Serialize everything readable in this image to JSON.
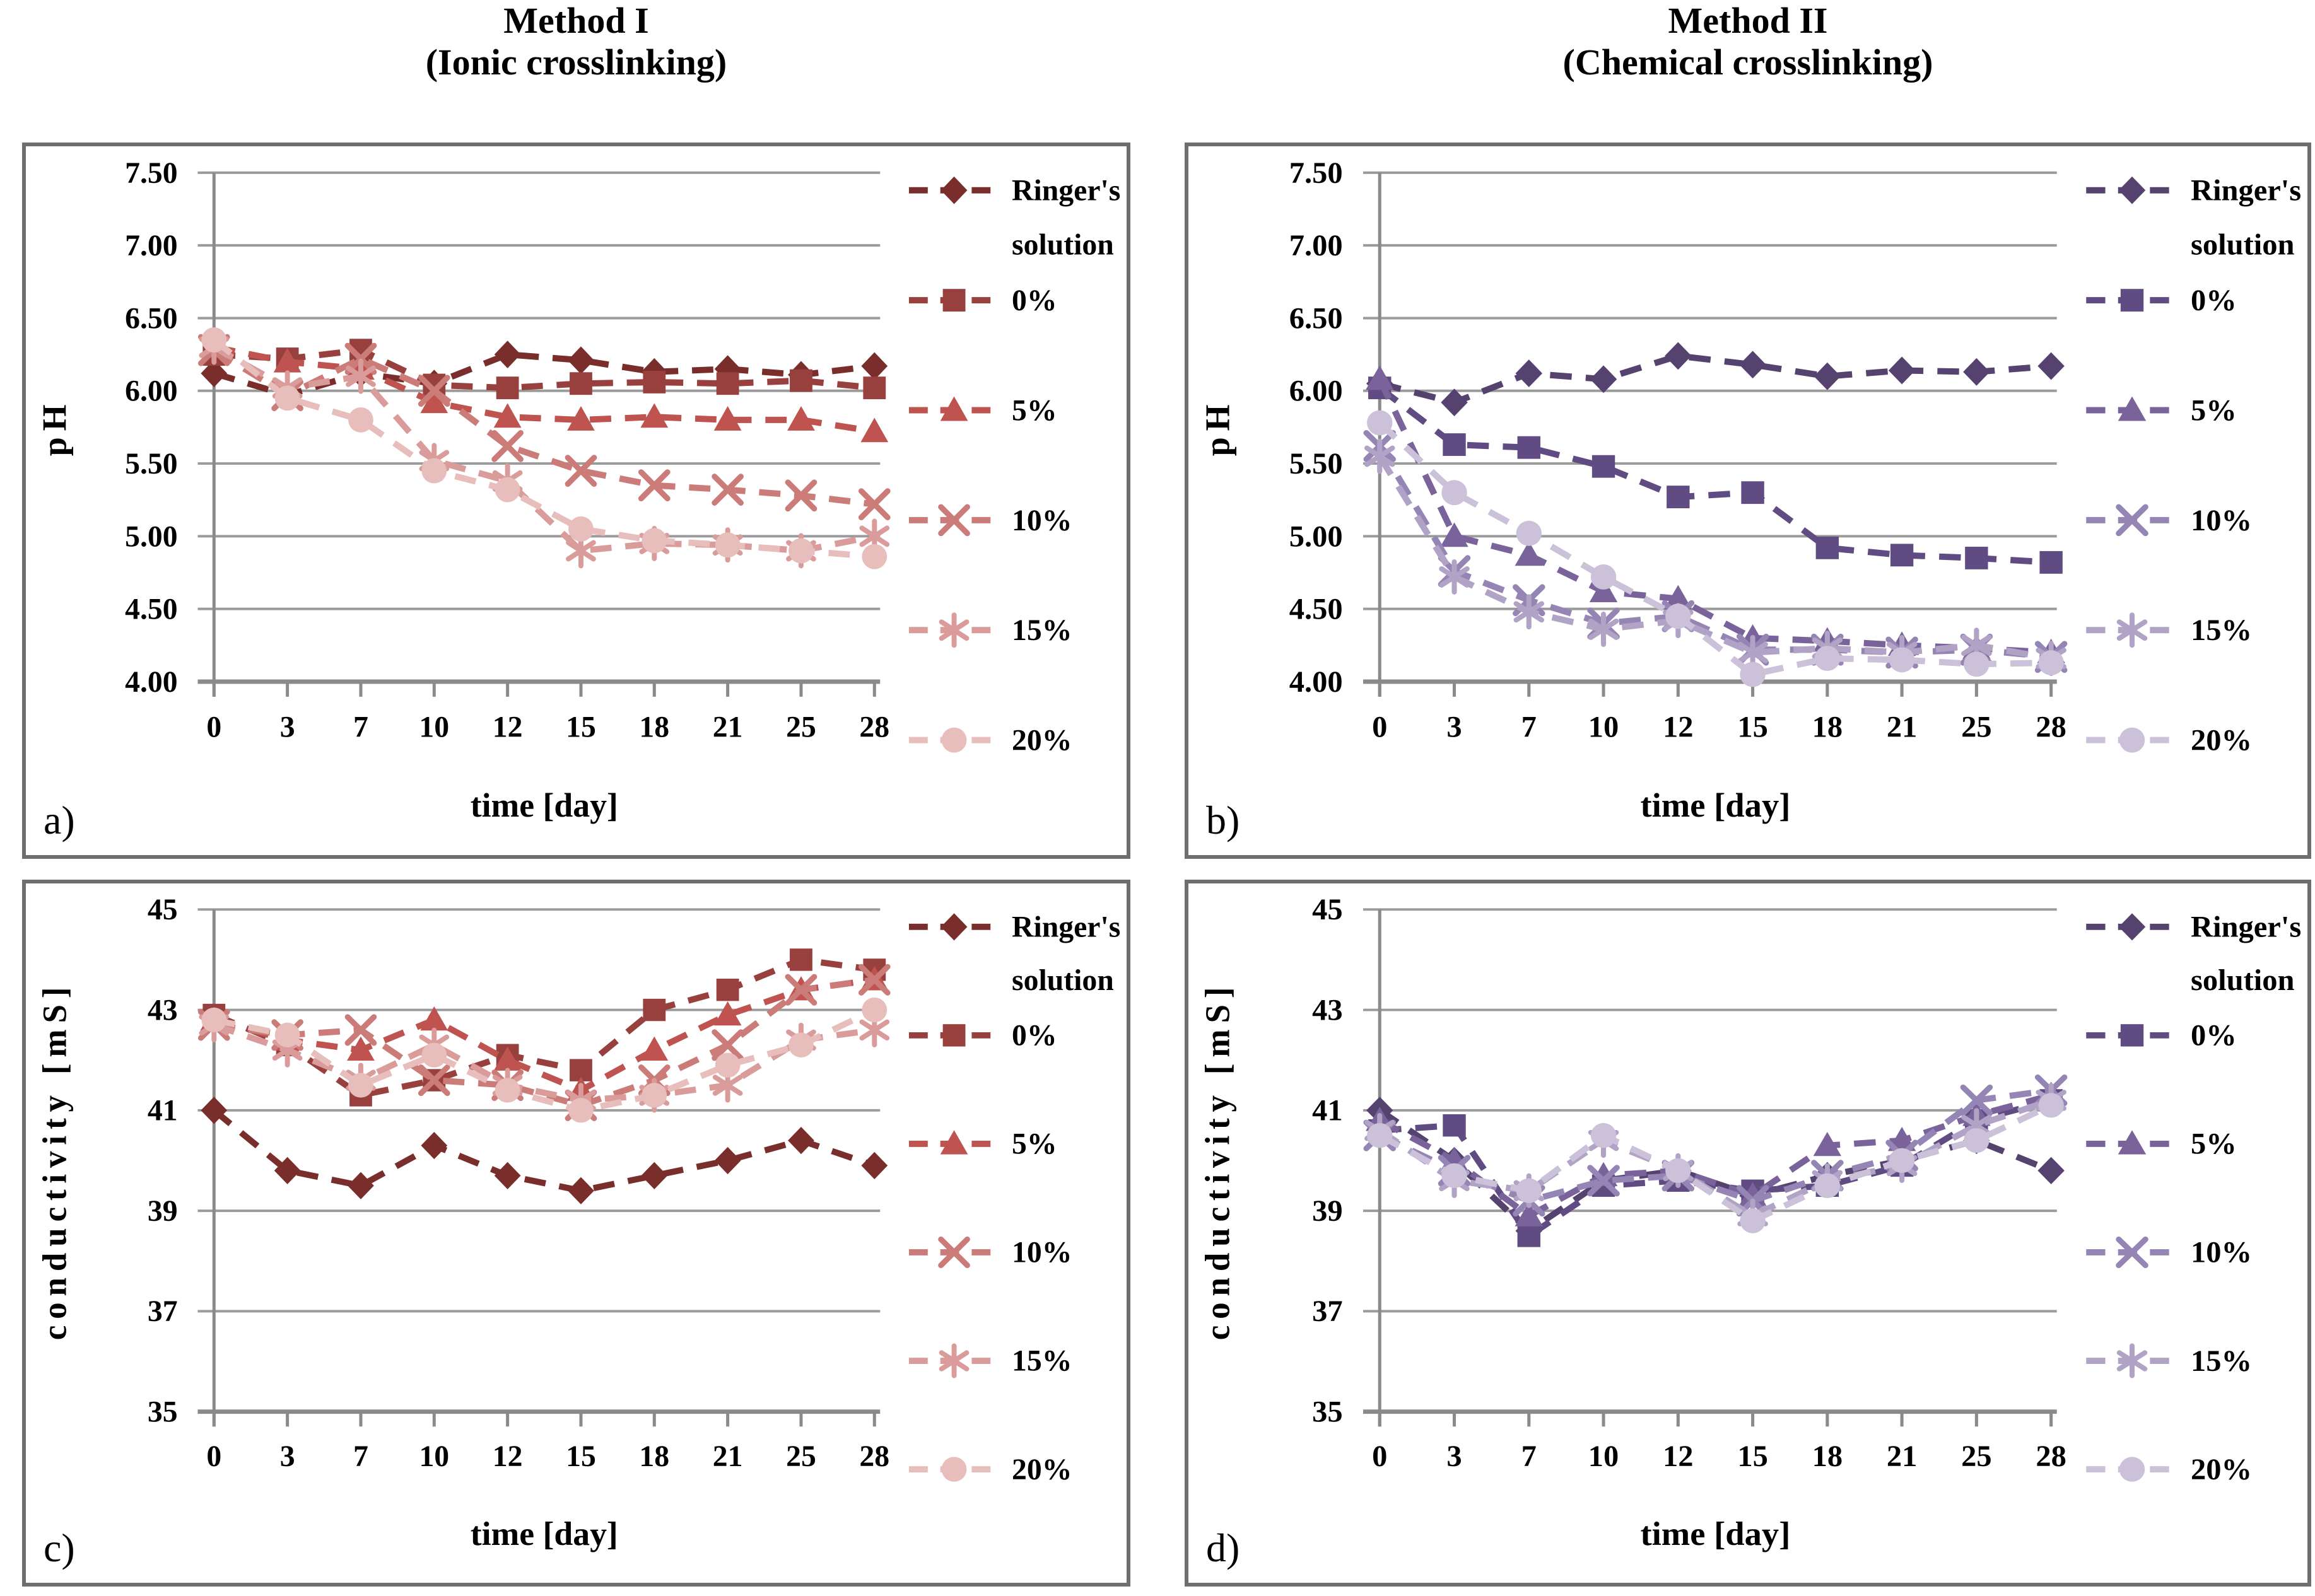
{
  "figure": {
    "column_titles": [
      {
        "line1": "Method I",
        "line2": "(Ionic crosslinking)"
      },
      {
        "line1": "Method II",
        "line2": "(Chemical crosslinking)"
      }
    ]
  },
  "chart_data": [
    {
      "type": "line",
      "panel_label": "a)",
      "xlabel": "time [day]",
      "ylabel": "pH",
      "x": [
        0,
        3,
        7,
        10,
        12,
        15,
        18,
        21,
        25,
        28
      ],
      "ylim": [
        4.0,
        7.5
      ],
      "ytick_step": 0.5,
      "ytick_decimals": 2,
      "grid": true,
      "legend_position": "right",
      "series": [
        {
          "name": "Ringer's solution",
          "legend_lines": [
            "Ringer's",
            "solution"
          ],
          "marker": "diamond",
          "color": "#7A2E2B",
          "values": [
            6.12,
            5.97,
            6.12,
            6.05,
            6.25,
            6.21,
            6.13,
            6.15,
            6.11,
            6.17
          ]
        },
        {
          "name": "0%",
          "legend_lines": [
            "0%"
          ],
          "marker": "square",
          "color": "#98403D",
          "values": [
            6.25,
            6.22,
            6.28,
            6.04,
            6.02,
            6.05,
            6.06,
            6.05,
            6.07,
            6.02
          ]
        },
        {
          "name": "5%",
          "legend_lines": [
            "5%"
          ],
          "marker": "triangle",
          "color": "#BE5350",
          "values": [
            6.3,
            6.2,
            6.15,
            5.92,
            5.82,
            5.8,
            5.82,
            5.8,
            5.8,
            5.72
          ]
        },
        {
          "name": "10%",
          "legend_lines": [
            "10%"
          ],
          "marker": "x",
          "color": "#CB7B78",
          "values": [
            6.28,
            5.97,
            6.22,
            6.0,
            5.62,
            5.45,
            5.35,
            5.32,
            5.28,
            5.22
          ]
        },
        {
          "name": "15%",
          "legend_lines": [
            "15%"
          ],
          "marker": "asterisk",
          "color": "#DA9C9A",
          "values": [
            6.3,
            6.02,
            6.1,
            5.52,
            5.38,
            4.9,
            4.95,
            4.94,
            4.9,
            5.0
          ]
        },
        {
          "name": "20%",
          "legend_lines": [
            "20%"
          ],
          "marker": "circle",
          "color": "#E7BEBC",
          "values": [
            6.35,
            5.95,
            5.8,
            5.45,
            5.32,
            5.05,
            4.97,
            4.94,
            4.9,
            4.86
          ]
        }
      ]
    },
    {
      "type": "line",
      "panel_label": "b)",
      "xlabel": "time [day]",
      "ylabel": "pH",
      "x": [
        0,
        3,
        7,
        10,
        12,
        15,
        18,
        21,
        25,
        28
      ],
      "ylim": [
        4.0,
        7.5
      ],
      "ytick_step": 0.5,
      "ytick_decimals": 2,
      "grid": true,
      "legend_position": "right",
      "series": [
        {
          "name": "Ringer's solution",
          "legend_lines": [
            "Ringer's",
            "solution"
          ],
          "marker": "diamond",
          "color": "#56426F",
          "values": [
            6.05,
            5.92,
            6.12,
            6.08,
            6.24,
            6.18,
            6.1,
            6.14,
            6.13,
            6.17
          ]
        },
        {
          "name": "0%",
          "legend_lines": [
            "0%"
          ],
          "marker": "square",
          "color": "#604C82",
          "values": [
            6.02,
            5.63,
            5.61,
            5.48,
            5.27,
            5.3,
            4.92,
            4.87,
            4.85,
            4.82
          ]
        },
        {
          "name": "5%",
          "legend_lines": [
            "5%"
          ],
          "marker": "triangle",
          "color": "#7A639B",
          "values": [
            6.08,
            5.0,
            4.87,
            4.62,
            4.57,
            4.3,
            4.28,
            4.25,
            4.23,
            4.2
          ]
        },
        {
          "name": "10%",
          "legend_lines": [
            "10%"
          ],
          "marker": "x",
          "color": "#9585B5",
          "values": [
            5.62,
            4.76,
            4.56,
            4.4,
            4.45,
            4.22,
            4.22,
            4.2,
            4.22,
            4.17
          ]
        },
        {
          "name": "15%",
          "legend_lines": [
            "15%"
          ],
          "marker": "asterisk",
          "color": "#B0A3C6",
          "values": [
            5.55,
            4.72,
            4.48,
            4.36,
            4.42,
            4.2,
            4.23,
            4.2,
            4.25,
            4.16
          ]
        },
        {
          "name": "20%",
          "legend_lines": [
            "20%"
          ],
          "marker": "circle",
          "color": "#CBC1D9",
          "values": [
            5.78,
            5.3,
            5.02,
            4.72,
            4.45,
            4.05,
            4.16,
            4.15,
            4.12,
            4.13
          ]
        }
      ]
    },
    {
      "type": "line",
      "panel_label": "c)",
      "xlabel": "time [day]",
      "ylabel": "conductivity [mS]",
      "x": [
        0,
        3,
        7,
        10,
        12,
        15,
        18,
        21,
        25,
        28
      ],
      "ylim": [
        35,
        45
      ],
      "ytick_step": 2,
      "ytick_decimals": 0,
      "grid": true,
      "legend_position": "right",
      "series": [
        {
          "name": "Ringer's solution",
          "legend_lines": [
            "Ringer's",
            "solution"
          ],
          "marker": "diamond",
          "color": "#7A2E2B",
          "values": [
            41.0,
            39.8,
            39.5,
            40.3,
            39.7,
            39.4,
            39.7,
            40.0,
            40.4,
            39.9
          ]
        },
        {
          "name": "0%",
          "legend_lines": [
            "0%"
          ],
          "marker": "square",
          "color": "#98403D",
          "values": [
            42.9,
            42.3,
            41.3,
            41.6,
            42.1,
            41.8,
            43.0,
            43.4,
            44.0,
            43.8
          ]
        },
        {
          "name": "5%",
          "legend_lines": [
            "5%"
          ],
          "marker": "triangle",
          "color": "#BE5350",
          "values": [
            42.8,
            42.4,
            42.2,
            42.8,
            42.0,
            41.4,
            42.2,
            42.9,
            43.4,
            43.6
          ]
        },
        {
          "name": "10%",
          "legend_lines": [
            "10%"
          ],
          "marker": "x",
          "color": "#CB7B78",
          "values": [
            42.7,
            42.5,
            42.6,
            41.6,
            41.5,
            41.1,
            41.6,
            42.3,
            43.4,
            43.6
          ]
        },
        {
          "name": "15%",
          "legend_lines": [
            "15%"
          ],
          "marker": "asterisk",
          "color": "#DA9C9A",
          "values": [
            42.7,
            42.2,
            41.6,
            42.3,
            41.5,
            41.2,
            41.3,
            41.5,
            42.4,
            42.6
          ]
        },
        {
          "name": "20%",
          "legend_lines": [
            "20%"
          ],
          "marker": "circle",
          "color": "#E7BEBC",
          "values": [
            42.8,
            42.5,
            41.5,
            42.1,
            41.4,
            41.0,
            41.3,
            41.9,
            42.3,
            43.0
          ]
        }
      ]
    },
    {
      "type": "line",
      "panel_label": "d)",
      "xlabel": "time [day]",
      "ylabel": "conductivity [mS]",
      "x": [
        0,
        3,
        7,
        10,
        12,
        15,
        18,
        21,
        25,
        28
      ],
      "ylim": [
        35,
        45
      ],
      "ytick_step": 2,
      "ytick_decimals": 0,
      "grid": true,
      "legend_position": "right",
      "series": [
        {
          "name": "Ringer's solution",
          "legend_lines": [
            "Ringer's",
            "solution"
          ],
          "marker": "diamond",
          "color": "#56426F",
          "values": [
            41.0,
            40.0,
            38.6,
            39.6,
            39.8,
            39.3,
            39.7,
            40.0,
            40.4,
            39.8
          ]
        },
        {
          "name": "0%",
          "legend_lines": [
            "0%"
          ],
          "marker": "square",
          "color": "#604C82",
          "values": [
            40.6,
            40.7,
            38.5,
            39.5,
            39.6,
            39.4,
            39.5,
            39.9,
            40.8,
            41.2
          ]
        },
        {
          "name": "5%",
          "legend_lines": [
            "5%"
          ],
          "marker": "triangle",
          "color": "#7A639B",
          "values": [
            40.8,
            40.0,
            38.9,
            39.7,
            39.8,
            39.3,
            40.3,
            40.4,
            40.9,
            41.3
          ]
        },
        {
          "name": "10%",
          "legend_lines": [
            "10%"
          ],
          "marker": "x",
          "color": "#9585B5",
          "values": [
            40.5,
            39.8,
            39.2,
            39.6,
            39.7,
            39.2,
            39.7,
            40.1,
            41.2,
            41.4
          ]
        },
        {
          "name": "15%",
          "legend_lines": [
            "15%"
          ],
          "marker": "asterisk",
          "color": "#B0A3C6",
          "values": [
            40.6,
            39.6,
            39.4,
            40.4,
            39.8,
            38.9,
            39.6,
            39.9,
            40.7,
            41.2
          ]
        },
        {
          "name": "20%",
          "legend_lines": [
            "20%"
          ],
          "marker": "circle",
          "color": "#CBC1D9",
          "values": [
            40.5,
            39.7,
            39.4,
            40.5,
            39.8,
            38.8,
            39.5,
            40.0,
            40.4,
            41.1
          ]
        }
      ]
    }
  ]
}
